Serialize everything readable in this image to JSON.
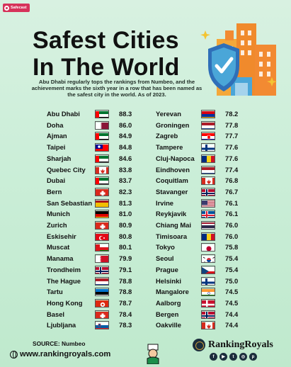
{
  "badge": {
    "label": "Safecast"
  },
  "title_lines": [
    "Safest Cities",
    "In The World"
  ],
  "subtitle": "Abu Dhabi regularly tops the rankings from Numbeo, and the achievement marks the sixth year in a row that has been named as the safest city in the world. As of 2023.",
  "chart_data": {
    "type": "table",
    "title": "Safest Cities In The World",
    "columns": [
      [
        {
          "city": "Abu Dhabi",
          "flag": "uae",
          "score": "88.3"
        },
        {
          "city": "Doha",
          "flag": "qatar",
          "score": "86.0"
        },
        {
          "city": "Ajman",
          "flag": "uae",
          "score": "84.9"
        },
        {
          "city": "Taipei",
          "flag": "taiwan",
          "score": "84.8"
        },
        {
          "city": "Sharjah",
          "flag": "uae",
          "score": "84.6"
        },
        {
          "city": "Quebec City",
          "flag": "canada",
          "score": "83.8"
        },
        {
          "city": "Dubai",
          "flag": "uae",
          "score": "83.7"
        },
        {
          "city": "Bern",
          "flag": "switzerland",
          "score": "82.3"
        },
        {
          "city": "San Sebastian",
          "flag": "spain",
          "score": "81.3"
        },
        {
          "city": "Munich",
          "flag": "germany",
          "score": "81.0"
        },
        {
          "city": "Zurich",
          "flag": "switzerland",
          "score": "80.9"
        },
        {
          "city": "Eskisehir",
          "flag": "turkey",
          "score": "80.8"
        },
        {
          "city": "Muscat",
          "flag": "oman",
          "score": "80.1"
        },
        {
          "city": "Manama",
          "flag": "bahrain",
          "score": "79.9"
        },
        {
          "city": "Trondheim",
          "flag": "norway",
          "score": "79.1"
        },
        {
          "city": "The Hague",
          "flag": "netherlands",
          "score": "78.8"
        },
        {
          "city": "Tartu",
          "flag": "estonia",
          "score": "78.8"
        },
        {
          "city": "Hong Kong",
          "flag": "hongkong",
          "score": "78.7"
        },
        {
          "city": "Basel",
          "flag": "switzerland",
          "score": "78.4"
        },
        {
          "city": "Ljubljana",
          "flag": "slovenia",
          "score": "78.3"
        }
      ],
      [
        {
          "city": "Yerevan",
          "flag": "armenia",
          "score": "78.2"
        },
        {
          "city": "Groningen",
          "flag": "netherlands",
          "score": "77.8"
        },
        {
          "city": "Zagreb",
          "flag": "croatia",
          "score": "77.7"
        },
        {
          "city": "Tampere",
          "flag": "finland",
          "score": "77.6"
        },
        {
          "city": "Cluj-Napoca",
          "flag": "romania",
          "score": "77.6"
        },
        {
          "city": "Eindhoven",
          "flag": "netherlands",
          "score": "77.4"
        },
        {
          "city": "Coquitlam",
          "flag": "canada",
          "score": "76.8"
        },
        {
          "city": "Stavanger",
          "flag": "norway",
          "score": "76.7"
        },
        {
          "city": "Irvine",
          "flag": "usa",
          "score": "76.1"
        },
        {
          "city": "Reykjavik",
          "flag": "iceland",
          "score": "76.1"
        },
        {
          "city": "Chiang Mai",
          "flag": "thailand",
          "score": "76.0"
        },
        {
          "city": "Timisoara",
          "flag": "romania",
          "score": "76.0"
        },
        {
          "city": "Tokyo",
          "flag": "japan",
          "score": "75.8"
        },
        {
          "city": "Seoul",
          "flag": "southkorea",
          "score": "75.4"
        },
        {
          "city": "Prague",
          "flag": "czech",
          "score": "75.4"
        },
        {
          "city": "Helsinki",
          "flag": "finland",
          "score": "75.0"
        },
        {
          "city": "Mangalore",
          "flag": "india",
          "score": "74.5"
        },
        {
          "city": "Aalborg",
          "flag": "denmark",
          "score": "74.5"
        },
        {
          "city": "Bergen",
          "flag": "norway",
          "score": "74.4"
        },
        {
          "city": "Oakville",
          "flag": "canada",
          "score": "74.4"
        }
      ]
    ]
  },
  "footer": {
    "source": "SOURCE: Numbeo",
    "website": "www.rankingroyals.com",
    "brand": "RankingRoyals",
    "social_icons": [
      "facebook-icon",
      "youtube-icon",
      "twitter-icon",
      "instagram-icon",
      "pinterest-icon"
    ]
  },
  "colors": {
    "background": "#cbeed8",
    "title": "#111111",
    "accent": "#d6335a"
  }
}
